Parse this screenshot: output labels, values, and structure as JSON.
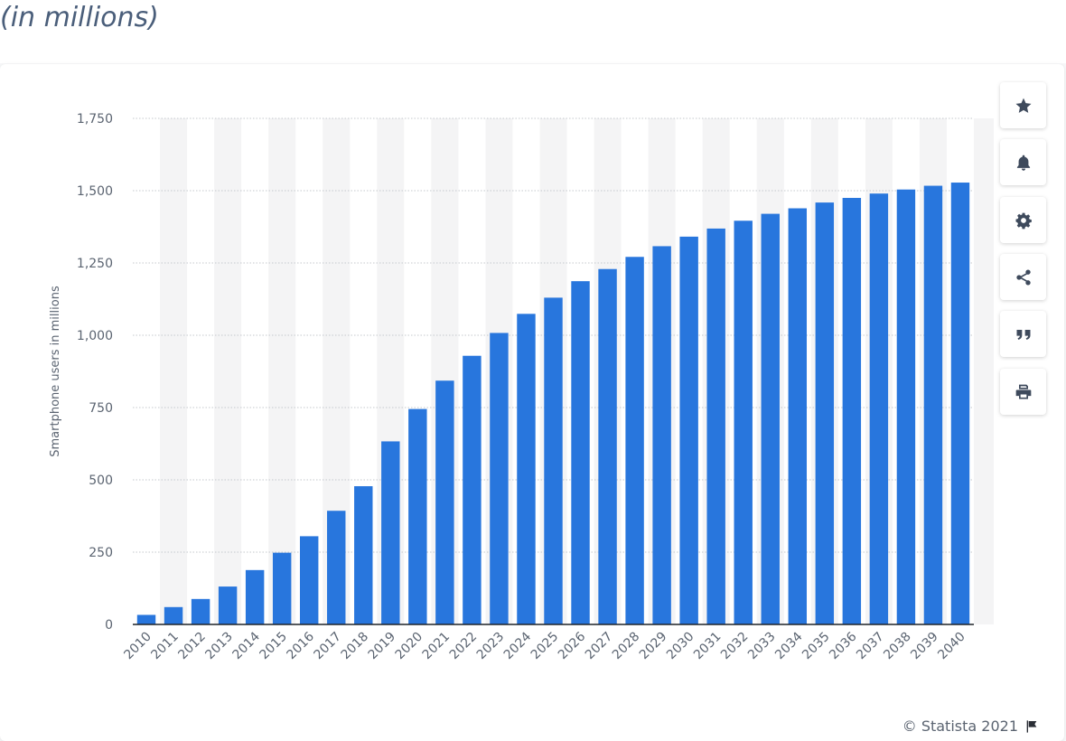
{
  "header": {
    "subtitle": "(in millions)"
  },
  "toolbar": {
    "buttons": [
      {
        "name": "favorite",
        "icon": "star-icon"
      },
      {
        "name": "notification",
        "icon": "bell-icon"
      },
      {
        "name": "settings",
        "icon": "gear-icon"
      },
      {
        "name": "share",
        "icon": "share-icon"
      },
      {
        "name": "cite",
        "icon": "quote-icon"
      },
      {
        "name": "print",
        "icon": "print-icon"
      }
    ]
  },
  "footer": {
    "credit": "© Statista 2021"
  },
  "colors": {
    "bar": "#2876dd",
    "stripe": "#f4f4f5",
    "accent_text": "#4a5e7a"
  },
  "chart_data": {
    "type": "bar",
    "ylabel": "Smartphone users in millions",
    "xlabel": "",
    "ylim": [
      0,
      1750
    ],
    "yticks": [
      0,
      250,
      500,
      750,
      1000,
      1250,
      1500,
      1750
    ],
    "ytick_labels": [
      "0",
      "250",
      "500",
      "750",
      "1,000",
      "1,250",
      "1,500",
      "1,750"
    ],
    "grid": true,
    "legend": "none",
    "categories": [
      "2010",
      "2011",
      "2012",
      "2013",
      "2014",
      "2015",
      "2016",
      "2017",
      "2018",
      "2019",
      "2020",
      "2021",
      "2022",
      "2023",
      "2024",
      "2025",
      "2026",
      "2027",
      "2028",
      "2029",
      "2030",
      "2031",
      "2032",
      "2033",
      "2034",
      "2035",
      "2036",
      "2037",
      "2038",
      "2039",
      "2040"
    ],
    "values": [
      33,
      60,
      88,
      131,
      188,
      248,
      305,
      393,
      478,
      633,
      745,
      843,
      929,
      1008,
      1074,
      1130,
      1187,
      1229,
      1271,
      1308,
      1341,
      1369,
      1396,
      1420,
      1439,
      1459,
      1475,
      1490,
      1504,
      1517,
      1528
    ]
  }
}
